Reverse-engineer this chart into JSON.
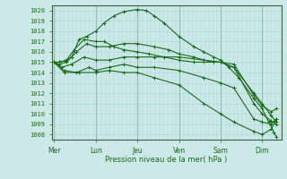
{
  "bg_color": "#cce8e8",
  "grid_major_color": "#aad4d4",
  "grid_minor_color": "#bbdede",
  "line_color": "#1a6b1a",
  "xlabel": "Pression niveau de la mer( hPa )",
  "ylim": [
    1007.5,
    1020.5
  ],
  "yticks": [
    1008,
    1009,
    1010,
    1011,
    1012,
    1013,
    1014,
    1015,
    1016,
    1017,
    1018,
    1019,
    1020
  ],
  "xtick_labels": [
    "Mer",
    "Lun",
    "Jeu",
    "Ven",
    "Sam",
    "Dim"
  ],
  "day_positions": [
    0.0,
    0.833,
    1.667,
    2.5,
    3.333,
    4.167
  ],
  "xlim": [
    -0.05,
    4.55
  ],
  "series": [
    {
      "x": [
        0.0,
        0.1,
        0.2,
        0.35,
        0.5,
        0.65,
        0.833,
        1.0,
        1.2,
        1.4,
        1.667,
        1.85,
        2.0,
        2.2,
        2.5,
        2.8,
        3.0,
        3.2,
        3.333,
        3.5,
        3.7,
        4.0,
        4.167,
        4.3,
        4.4,
        4.45
      ],
      "y": [
        1015.0,
        1015.0,
        1015.1,
        1015.5,
        1017.2,
        1017.5,
        1018.0,
        1018.8,
        1019.5,
        1019.9,
        1020.1,
        1020.0,
        1019.5,
        1018.8,
        1017.5,
        1016.5,
        1016.0,
        1015.5,
        1015.2,
        1014.5,
        1013.5,
        1011.5,
        1010.5,
        1009.2,
        1008.2,
        1007.8
      ]
    },
    {
      "x": [
        0.0,
        0.1,
        0.25,
        0.4,
        0.6,
        0.833,
        1.0,
        1.2,
        1.4,
        1.667,
        1.9,
        2.2,
        2.5,
        2.8,
        3.0,
        3.2,
        3.333,
        3.6,
        4.0,
        4.167,
        4.35,
        4.45
      ],
      "y": [
        1015.0,
        1015.0,
        1015.2,
        1016.2,
        1017.2,
        1017.0,
        1017.0,
        1016.5,
        1016.2,
        1016.0,
        1015.8,
        1015.5,
        1015.2,
        1015.0,
        1015.0,
        1015.0,
        1015.0,
        1014.5,
        1011.0,
        1010.0,
        1009.3,
        1009.0
      ]
    },
    {
      "x": [
        0.0,
        0.1,
        0.25,
        0.45,
        0.65,
        0.833,
        1.1,
        1.4,
        1.667,
        2.0,
        2.3,
        2.5,
        2.8,
        3.0,
        3.2,
        3.333,
        3.6,
        4.0,
        4.167,
        4.35,
        4.45
      ],
      "y": [
        1015.0,
        1014.8,
        1015.0,
        1016.0,
        1016.8,
        1016.5,
        1016.5,
        1016.8,
        1016.8,
        1016.5,
        1016.2,
        1015.8,
        1015.5,
        1015.2,
        1015.0,
        1015.0,
        1014.8,
        1011.8,
        1010.8,
        1010.2,
        1010.5
      ]
    },
    {
      "x": [
        0.0,
        0.15,
        0.35,
        0.6,
        0.833,
        1.1,
        1.4,
        1.667,
        2.0,
        2.5,
        3.0,
        3.333,
        3.6,
        4.0,
        4.167,
        4.35,
        4.45
      ],
      "y": [
        1015.0,
        1014.5,
        1014.8,
        1015.5,
        1015.2,
        1015.2,
        1015.5,
        1015.5,
        1015.5,
        1015.5,
        1015.2,
        1015.0,
        1014.5,
        1012.0,
        1011.0,
        1009.8,
        1009.2
      ]
    },
    {
      "x": [
        0.0,
        0.2,
        0.45,
        0.7,
        0.833,
        1.1,
        1.4,
        1.667,
        2.0,
        2.5,
        3.0,
        3.333,
        3.6,
        4.0,
        4.167,
        4.35,
        4.45
      ],
      "y": [
        1015.0,
        1014.2,
        1014.0,
        1014.5,
        1014.2,
        1014.5,
        1014.8,
        1014.5,
        1014.5,
        1014.2,
        1013.5,
        1013.0,
        1012.5,
        1009.5,
        1009.2,
        1009.0,
        1009.5
      ]
    },
    {
      "x": [
        0.0,
        0.2,
        0.5,
        0.833,
        1.1,
        1.4,
        1.667,
        2.0,
        2.5,
        3.0,
        3.333,
        3.6,
        4.0,
        4.167,
        4.35,
        4.45
      ],
      "y": [
        1015.0,
        1014.0,
        1014.0,
        1014.0,
        1014.2,
        1014.0,
        1014.0,
        1013.5,
        1012.8,
        1011.0,
        1010.0,
        1009.2,
        1008.3,
        1008.0,
        1008.5,
        1009.5
      ]
    }
  ]
}
